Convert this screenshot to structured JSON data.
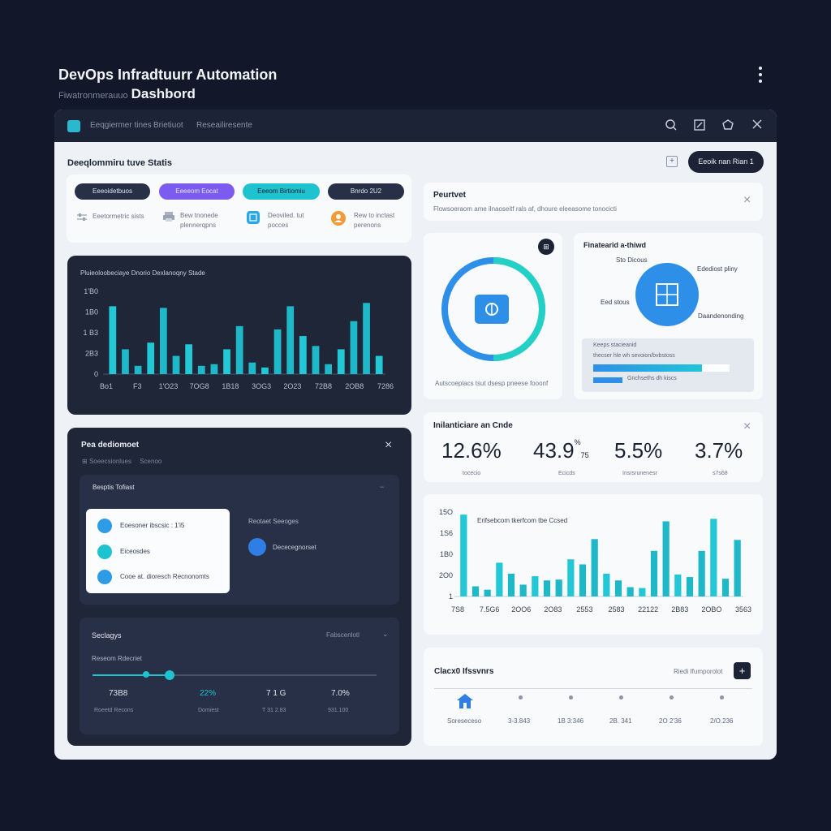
{
  "page": {
    "title_line1": "DevOps Infradtuurr Automation",
    "title_line2_small": "Fiwatronmerauuo",
    "title_line2": "Dashbord"
  },
  "titlebar": {
    "tabs": [
      "Eeqgiermer tines",
      "Brietiuot",
      "Reseailiresente"
    ]
  },
  "toolbar": {
    "primary_button": "Eeoik nan Rian 1"
  },
  "deployment_status": {
    "title": "Deeqlommiru tuve Statis",
    "pills": [
      {
        "label": "Eeeoidetbuos",
        "color": "#283048"
      },
      {
        "label": "Eeeeom Eocat",
        "color": "#7c5cf0"
      },
      {
        "label": "Eeeom Birtiomiu",
        "color": "#1fc3cf"
      },
      {
        "label": "Bnrdo 2U2",
        "color": "#283048"
      }
    ],
    "items": [
      {
        "line1": "Eeetormetric sists",
        "line2": "",
        "icon": "sliders-icon",
        "color": "#9aa3b4"
      },
      {
        "line1": "Bew tnonede",
        "line2": "plennerqpns",
        "icon": "printer-icon",
        "color": "#9aa3b4"
      },
      {
        "line1": "Deoviled. tut",
        "line2": "pocces",
        "icon": "database-icon",
        "color": "#2aa7e8"
      },
      {
        "line1": "Rew to inctast",
        "line2": "perenons",
        "icon": "user-icon",
        "color": "#f29a38"
      }
    ]
  },
  "pipeline_chart": {
    "title": "Pluieoloobeciaye Dnorio Dexlanoqny Stade"
  },
  "chart_data": [
    {
      "type": "bar",
      "title": "Pluieoloobeciaye Dnorio Dexlanoqny Stade",
      "y_tick_labels": [
        "1'B0",
        "1B0",
        "1 B3",
        "2B3",
        "0"
      ],
      "x_tick_labels": [
        "Bo1",
        "F3",
        "1'O23",
        "7OG8",
        "1B18",
        "3OG3",
        "2O23",
        "72B8",
        "2OB8",
        "7286"
      ],
      "values": [
        82,
        30,
        10,
        38,
        80,
        22,
        36,
        10,
        12,
        30,
        58,
        14,
        8,
        54,
        82,
        46,
        34,
        12,
        30,
        64,
        86,
        22
      ],
      "ylim": [
        0,
        100
      ]
    },
    {
      "type": "bar",
      "title": "Erifsebcom tkerfcom tbe Ccsed",
      "y_tick_labels": [
        "15O",
        "1S6",
        "1B0",
        "2O0",
        "1"
      ],
      "x_tick_labels": [
        "7S8",
        "7.5G6",
        "2OO6",
        "2O83",
        "2553",
        "2583",
        "22122",
        "2B83",
        "2OBO",
        "3563"
      ],
      "values": [
        97,
        12,
        8,
        40,
        27,
        14,
        24,
        19,
        20,
        44,
        38,
        68,
        27,
        19,
        11,
        10,
        54,
        89,
        26,
        23,
        54,
        92,
        21,
        67
      ],
      "ylim": [
        0,
        100
      ]
    }
  ],
  "product": {
    "title": "Peurtvet",
    "subtitle": "Flowsoeraom ame ilnaoseitf rals af, dhoure eleeasome tonocicti"
  },
  "donut": {
    "caption": "Autscoeplacs tsut dsesp pneese fooonf",
    "icon": "dashboard-icon"
  },
  "infra": {
    "title": "Finatearid a-thiwd",
    "labels": [
      "Sto Dicous",
      "Edediost pliny",
      "Eed stous",
      "Daandenonding"
    ],
    "box_label": "Keeps stacieanid",
    "box_line": "thecser hle wh sevoion/bvbstoss",
    "legend": "Gnchseths dh kiscs"
  },
  "pea_panel": {
    "title": "Pea dediomoet",
    "breadcrumb": [
      "Soeecsionlues",
      "Scenoo"
    ],
    "sub_title": "Besptis Tofiast",
    "list_items": [
      {
        "label": "Eoesoner ibscsic : 1'i5",
        "color": "#2e9be6",
        "icon": "server-icon"
      },
      {
        "label": "Eiceosdes",
        "color": "#1fc3cf",
        "icon": "box-icon"
      },
      {
        "label": "Cooe at. dioresch Recnonomts",
        "color": "#2e9be6",
        "icon": "shield-icon"
      }
    ],
    "side_title": "Reotaet Seeoges",
    "side_item": "Dececegnorset"
  },
  "settings": {
    "title": "Seclagys",
    "right_label": "Fabscenlotl",
    "slider_label": "Reseom Rdecriet",
    "slider_value": 0.27,
    "stats": [
      {
        "value": "73B8",
        "label": "Roeetd Recons",
        "highlight": false
      },
      {
        "value": "22%",
        "label": "Domiest",
        "highlight": true
      },
      {
        "value": "7 1 G",
        "label": "T 31 2.83",
        "highlight": false
      },
      {
        "value": "7.0%",
        "label": "931.100",
        "highlight": false
      }
    ]
  },
  "infra_code": {
    "title": "Inilanticiare an Cnde",
    "metrics": [
      {
        "value": "12.6%",
        "label": "tocecio"
      },
      {
        "value": "43.9",
        "sup": "%",
        "sub": "75",
        "label": "Ecicds"
      },
      {
        "value": "5.5%",
        "label": "Insrsrunenesr"
      },
      {
        "value": "3.7%",
        "label": "s7s68"
      }
    ]
  },
  "cluster": {
    "title": "Clacx0 Ifssvnrs",
    "right_label": "Riedi Ifumporolot",
    "add_button": "+",
    "labels": [
      "Soreseceso",
      "3-3.843",
      "1B 3:346",
      "2B. 341",
      "2O 2'36",
      "2/O.236"
    ]
  }
}
